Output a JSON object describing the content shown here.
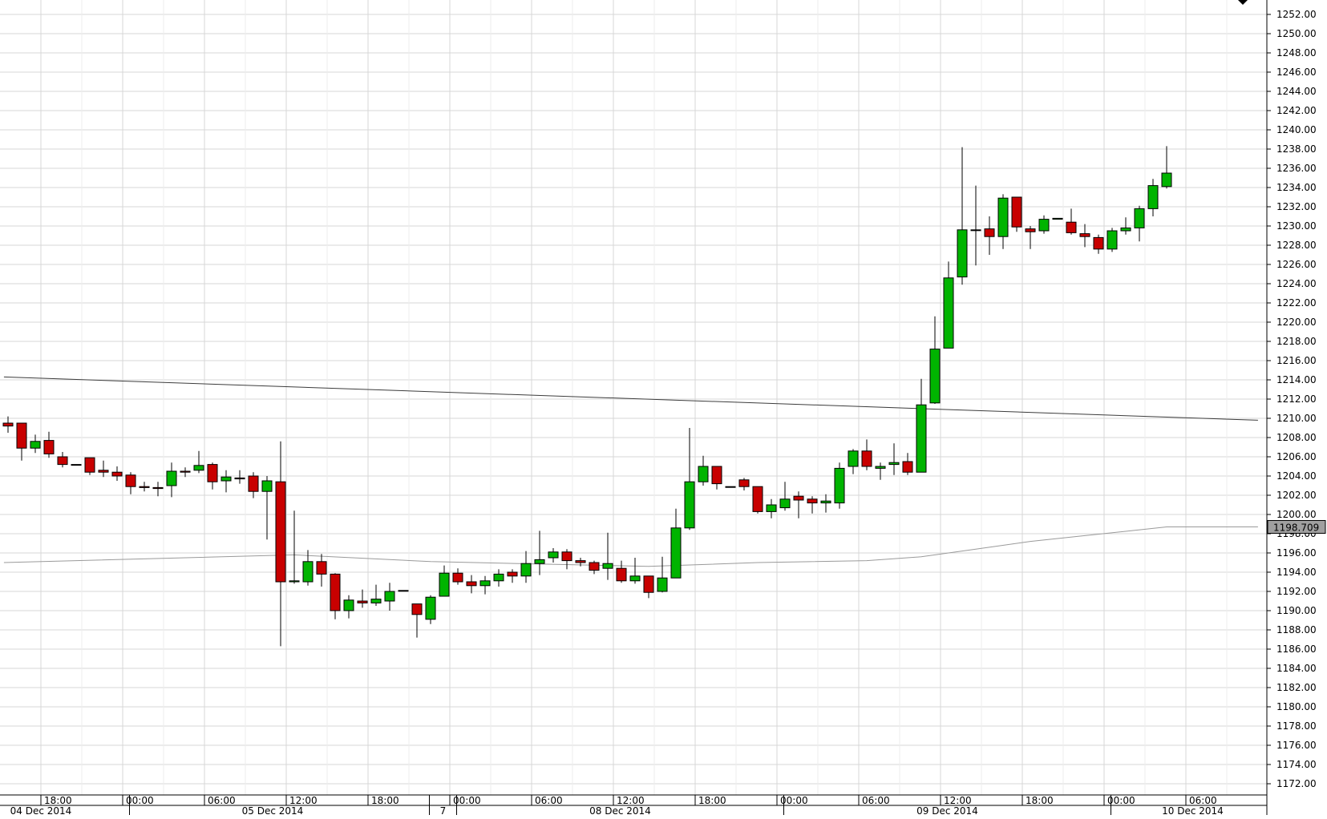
{
  "chart_data": {
    "type": "candlestick",
    "y_axis": {
      "min": 1172,
      "max": 1252,
      "step": 2,
      "position": "right",
      "decimals": 2
    },
    "x_axis": {
      "time_labels": [
        {
          "index": 1,
          "label": "18:00"
        },
        {
          "index": 7,
          "label": "00:00"
        },
        {
          "index": 13,
          "label": "06:00"
        },
        {
          "index": 19,
          "label": "12:00"
        },
        {
          "index": 25,
          "label": "18:00"
        },
        {
          "index": 31,
          "label": "00:00"
        },
        {
          "index": 37,
          "label": "06:00"
        },
        {
          "index": 43,
          "label": "12:00"
        },
        {
          "index": 49,
          "label": "18:00"
        },
        {
          "index": 55,
          "label": "00:00"
        },
        {
          "index": 61,
          "label": "06:00"
        },
        {
          "index": 67,
          "label": "12:00"
        },
        {
          "index": 73,
          "label": "18:00"
        },
        {
          "index": 79,
          "label": "00:00"
        },
        {
          "index": 85,
          "label": "06:00"
        }
      ],
      "date_labels": [
        {
          "index": 1,
          "label": "04 Dec 2014"
        },
        {
          "index": 18,
          "label": "05 Dec 2014"
        },
        {
          "index": 30.5,
          "label": "7"
        },
        {
          "index": 43.5,
          "label": "08 Dec 2014"
        },
        {
          "index": 67.5,
          "label": "09 Dec 2014"
        },
        {
          "index": 85.5,
          "label": "10 Dec 2014"
        }
      ],
      "date_separators": [
        7.5,
        29.5,
        31.5,
        55.5,
        79.5
      ]
    },
    "candles": [
      {
        "o": 1209.5,
        "h": 1210.2,
        "l": 1208.5,
        "c": 1209.2
      },
      {
        "o": 1209.5,
        "h": 1209.5,
        "l": 1205.6,
        "c": 1206.9
      },
      {
        "o": 1206.9,
        "h": 1208.3,
        "l": 1206.4,
        "c": 1207.6
      },
      {
        "o": 1207.7,
        "h": 1208.6,
        "l": 1205.9,
        "c": 1206.3
      },
      {
        "o": 1206.0,
        "h": 1206.5,
        "l": 1204.9,
        "c": 1205.2
      },
      {
        "o": 1205.2,
        "h": 1205.2,
        "l": 1205.2,
        "c": 1205.2
      },
      {
        "o": 1205.9,
        "h": 1205.9,
        "l": 1204.1,
        "c": 1204.4
      },
      {
        "o": 1204.6,
        "h": 1205.6,
        "l": 1203.9,
        "c": 1204.4
      },
      {
        "o": 1204.4,
        "h": 1205.0,
        "l": 1203.5,
        "c": 1204.0
      },
      {
        "o": 1204.1,
        "h": 1204.4,
        "l": 1202.1,
        "c": 1202.9
      },
      {
        "o": 1202.9,
        "h": 1203.4,
        "l": 1202.4,
        "c": 1202.8
      },
      {
        "o": 1202.8,
        "h": 1203.4,
        "l": 1201.9,
        "c": 1202.7
      },
      {
        "o": 1203.0,
        "h": 1205.4,
        "l": 1201.8,
        "c": 1204.5
      },
      {
        "o": 1204.5,
        "h": 1204.9,
        "l": 1203.9,
        "c": 1204.4
      },
      {
        "o": 1204.6,
        "h": 1206.6,
        "l": 1204.3,
        "c": 1205.1
      },
      {
        "o": 1205.2,
        "h": 1205.4,
        "l": 1202.6,
        "c": 1203.4
      },
      {
        "o": 1203.5,
        "h": 1204.6,
        "l": 1202.3,
        "c": 1203.9
      },
      {
        "o": 1203.8,
        "h": 1204.6,
        "l": 1203.2,
        "c": 1203.7
      },
      {
        "o": 1204.0,
        "h": 1204.4,
        "l": 1201.7,
        "c": 1202.4
      },
      {
        "o": 1202.4,
        "h": 1204.0,
        "l": 1197.4,
        "c": 1203.5
      },
      {
        "o": 1203.4,
        "h": 1207.6,
        "l": 1186.3,
        "c": 1193.0
      },
      {
        "o": 1193.0,
        "h": 1200.4,
        "l": 1192.8,
        "c": 1193.1
      },
      {
        "o": 1193.0,
        "h": 1196.3,
        "l": 1192.6,
        "c": 1195.1
      },
      {
        "o": 1195.1,
        "h": 1195.9,
        "l": 1192.5,
        "c": 1193.8
      },
      {
        "o": 1193.8,
        "h": 1193.9,
        "l": 1189.1,
        "c": 1190.0
      },
      {
        "o": 1190.0,
        "h": 1191.6,
        "l": 1189.2,
        "c": 1191.1
      },
      {
        "o": 1191.0,
        "h": 1192.2,
        "l": 1190.3,
        "c": 1190.8
      },
      {
        "o": 1190.8,
        "h": 1192.7,
        "l": 1190.5,
        "c": 1191.2
      },
      {
        "o": 1191.0,
        "h": 1192.9,
        "l": 1190.0,
        "c": 1192.0
      },
      {
        "o": 1192.1,
        "h": 1192.1,
        "l": 1192.1,
        "c": 1192.1
      },
      {
        "o": 1190.7,
        "h": 1190.7,
        "l": 1187.2,
        "c": 1189.6
      },
      {
        "o": 1189.1,
        "h": 1191.6,
        "l": 1188.6,
        "c": 1191.4
      },
      {
        "o": 1191.5,
        "h": 1194.7,
        "l": 1191.5,
        "c": 1193.9
      },
      {
        "o": 1193.9,
        "h": 1194.4,
        "l": 1192.7,
        "c": 1193.0
      },
      {
        "o": 1193.0,
        "h": 1193.7,
        "l": 1191.8,
        "c": 1192.6
      },
      {
        "o": 1192.6,
        "h": 1193.6,
        "l": 1191.7,
        "c": 1193.1
      },
      {
        "o": 1193.1,
        "h": 1194.3,
        "l": 1192.5,
        "c": 1193.8
      },
      {
        "o": 1194.0,
        "h": 1194.3,
        "l": 1192.9,
        "c": 1193.6
      },
      {
        "o": 1193.6,
        "h": 1196.2,
        "l": 1192.9,
        "c": 1194.9
      },
      {
        "o": 1194.9,
        "h": 1198.3,
        "l": 1193.7,
        "c": 1195.3
      },
      {
        "o": 1195.5,
        "h": 1196.5,
        "l": 1195.0,
        "c": 1196.1
      },
      {
        "o": 1196.1,
        "h": 1196.4,
        "l": 1194.3,
        "c": 1195.2
      },
      {
        "o": 1195.2,
        "h": 1195.5,
        "l": 1194.6,
        "c": 1195.0
      },
      {
        "o": 1195.0,
        "h": 1195.2,
        "l": 1193.8,
        "c": 1194.2
      },
      {
        "o": 1194.4,
        "h": 1198.1,
        "l": 1193.2,
        "c": 1194.9
      },
      {
        "o": 1194.4,
        "h": 1195.2,
        "l": 1192.9,
        "c": 1193.1
      },
      {
        "o": 1193.1,
        "h": 1195.5,
        "l": 1192.8,
        "c": 1193.6
      },
      {
        "o": 1193.6,
        "h": 1193.6,
        "l": 1191.3,
        "c": 1191.9
      },
      {
        "o": 1192.0,
        "h": 1195.6,
        "l": 1191.9,
        "c": 1193.4
      },
      {
        "o": 1193.4,
        "h": 1200.6,
        "l": 1193.4,
        "c": 1198.6
      },
      {
        "o": 1198.6,
        "h": 1209.0,
        "l": 1198.4,
        "c": 1203.4
      },
      {
        "o": 1203.4,
        "h": 1206.1,
        "l": 1203.0,
        "c": 1205.0
      },
      {
        "o": 1205.0,
        "h": 1205.0,
        "l": 1202.6,
        "c": 1203.2
      },
      {
        "o": 1202.9,
        "h": 1202.9,
        "l": 1202.9,
        "c": 1202.9
      },
      {
        "o": 1203.6,
        "h": 1203.8,
        "l": 1202.5,
        "c": 1202.9
      },
      {
        "o": 1202.9,
        "h": 1202.9,
        "l": 1200.1,
        "c": 1200.3
      },
      {
        "o": 1200.3,
        "h": 1201.6,
        "l": 1199.6,
        "c": 1201.0
      },
      {
        "o": 1200.7,
        "h": 1203.4,
        "l": 1200.4,
        "c": 1201.6
      },
      {
        "o": 1201.9,
        "h": 1202.4,
        "l": 1199.6,
        "c": 1201.5
      },
      {
        "o": 1201.6,
        "h": 1201.9,
        "l": 1200.1,
        "c": 1201.2
      },
      {
        "o": 1201.2,
        "h": 1202.1,
        "l": 1200.2,
        "c": 1201.4
      },
      {
        "o": 1201.2,
        "h": 1205.4,
        "l": 1200.6,
        "c": 1204.8
      },
      {
        "o": 1205.0,
        "h": 1206.8,
        "l": 1204.2,
        "c": 1206.6
      },
      {
        "o": 1206.6,
        "h": 1207.8,
        "l": 1204.6,
        "c": 1205.0
      },
      {
        "o": 1204.8,
        "h": 1205.4,
        "l": 1203.6,
        "c": 1205.0
      },
      {
        "o": 1205.2,
        "h": 1207.4,
        "l": 1204.1,
        "c": 1205.4
      },
      {
        "o": 1205.5,
        "h": 1206.4,
        "l": 1204.1,
        "c": 1204.4
      },
      {
        "o": 1204.4,
        "h": 1214.1,
        "l": 1204.4,
        "c": 1211.4
      },
      {
        "o": 1211.6,
        "h": 1220.6,
        "l": 1211.5,
        "c": 1217.2
      },
      {
        "o": 1217.3,
        "h": 1226.3,
        "l": 1217.3,
        "c": 1224.6
      },
      {
        "o": 1224.7,
        "h": 1238.2,
        "l": 1223.9,
        "c": 1229.6
      },
      {
        "o": 1229.6,
        "h": 1234.2,
        "l": 1225.9,
        "c": 1229.6
      },
      {
        "o": 1229.7,
        "h": 1231.0,
        "l": 1227.0,
        "c": 1228.9
      },
      {
        "o": 1228.9,
        "h": 1233.3,
        "l": 1227.6,
        "c": 1232.9
      },
      {
        "o": 1233.0,
        "h": 1233.0,
        "l": 1229.4,
        "c": 1229.9
      },
      {
        "o": 1229.7,
        "h": 1230.0,
        "l": 1227.6,
        "c": 1229.4
      },
      {
        "o": 1229.5,
        "h": 1231.1,
        "l": 1229.2,
        "c": 1230.7
      },
      {
        "o": 1230.7,
        "h": 1230.8,
        "l": 1230.7,
        "c": 1230.8
      },
      {
        "o": 1230.4,
        "h": 1231.8,
        "l": 1229.1,
        "c": 1229.3
      },
      {
        "o": 1229.2,
        "h": 1230.2,
        "l": 1227.8,
        "c": 1228.9
      },
      {
        "o": 1228.8,
        "h": 1229.1,
        "l": 1227.1,
        "c": 1227.6
      },
      {
        "o": 1227.6,
        "h": 1229.8,
        "l": 1227.3,
        "c": 1229.5
      },
      {
        "o": 1229.5,
        "h": 1230.9,
        "l": 1229.1,
        "c": 1229.8
      },
      {
        "o": 1229.8,
        "h": 1232.1,
        "l": 1228.4,
        "c": 1231.8
      },
      {
        "o": 1231.8,
        "h": 1234.9,
        "l": 1231.0,
        "c": 1234.2
      },
      {
        "o": 1234.1,
        "h": 1238.3,
        "l": 1233.9,
        "c": 1235.5
      }
    ],
    "trendline": {
      "from": {
        "index": -0.3,
        "value": 1214.3
      },
      "to": {
        "index": 91.7,
        "value": 1209.8
      }
    },
    "moving_average": [
      {
        "index": -0.3,
        "value": 1195.0
      },
      {
        "index": 21.0,
        "value": 1195.8
      },
      {
        "index": 31.0,
        "value": 1195.1
      },
      {
        "index": 47.0,
        "value": 1194.6
      },
      {
        "index": 55.0,
        "value": 1195.0
      },
      {
        "index": 63.0,
        "value": 1195.2
      },
      {
        "index": 67.0,
        "value": 1195.6
      },
      {
        "index": 71.0,
        "value": 1196.4
      },
      {
        "index": 75.0,
        "value": 1197.2
      },
      {
        "index": 79.0,
        "value": 1197.8
      },
      {
        "index": 85.0,
        "value": 1198.709
      },
      {
        "index": 91.7,
        "value": 1198.709
      }
    ],
    "last_value_label": "1198.709",
    "colors": {
      "up": "#00b400",
      "down": "#c80000",
      "outline": "#000000",
      "grid": "#d7d7d7",
      "trendline": "#3c3c3c",
      "moving_average": "#9a9a9a",
      "last_value_tag": "#a0a0a0"
    },
    "grid": true
  }
}
